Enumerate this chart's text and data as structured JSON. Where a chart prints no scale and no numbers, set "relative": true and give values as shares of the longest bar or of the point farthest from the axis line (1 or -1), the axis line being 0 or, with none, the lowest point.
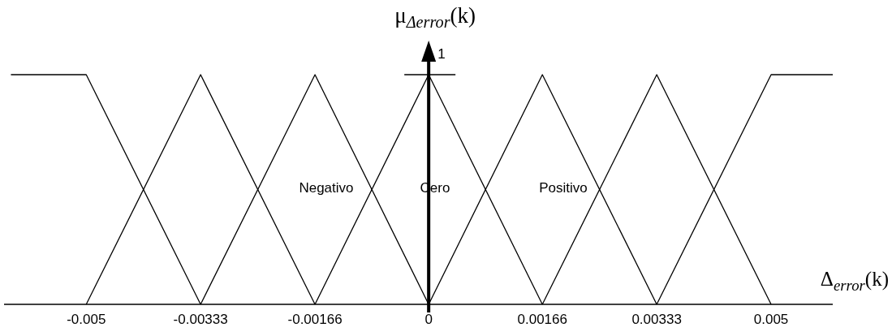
{
  "chart_data": {
    "type": "line",
    "xlabel": "Δ$_{error}$(k)",
    "ylabel": "μ$_{Δerror}$(k)",
    "xlim": [
      -0.0062,
      0.0059
    ],
    "relative": true,
    "xticks": [
      -0.005,
      -0.00333,
      -0.00166,
      0,
      0.00166,
      0.00333,
      0.005
    ],
    "series": [
      {
        "color": "#000000",
        "x": [
          -0.0061,
          -0.005,
          -0.00333
        ],
        "values": [
          1,
          1,
          0
        ]
      },
      {
        "color": "#000000",
        "x": [
          -0.005,
          -0.00333,
          -0.00166
        ],
        "values": [
          0,
          1,
          0
        ]
      },
      {
        "color": "#000000",
        "x": [
          -0.00333,
          -0.00166,
          0
        ],
        "values": [
          0,
          1,
          0
        ]
      },
      {
        "color": "#000000",
        "x": [
          -0.00166,
          0,
          0.00166
        ],
        "values": [
          0,
          1,
          0
        ]
      },
      {
        "color": "#000000",
        "x": [
          0,
          0.00166,
          0.00333
        ],
        "values": [
          0,
          1,
          0
        ]
      },
      {
        "color": "#000000",
        "x": [
          0.00166,
          0.00333,
          0.005
        ],
        "values": [
          0,
          1,
          0
        ]
      },
      {
        "color": "#000000",
        "x": [
          0.00333,
          0.005,
          0.0059
        ],
        "values": [
          0,
          1,
          1
        ]
      }
    ],
    "annotations": [
      "1",
      "Negativo",
      "Cero",
      "Positivo"
    ]
  }
}
